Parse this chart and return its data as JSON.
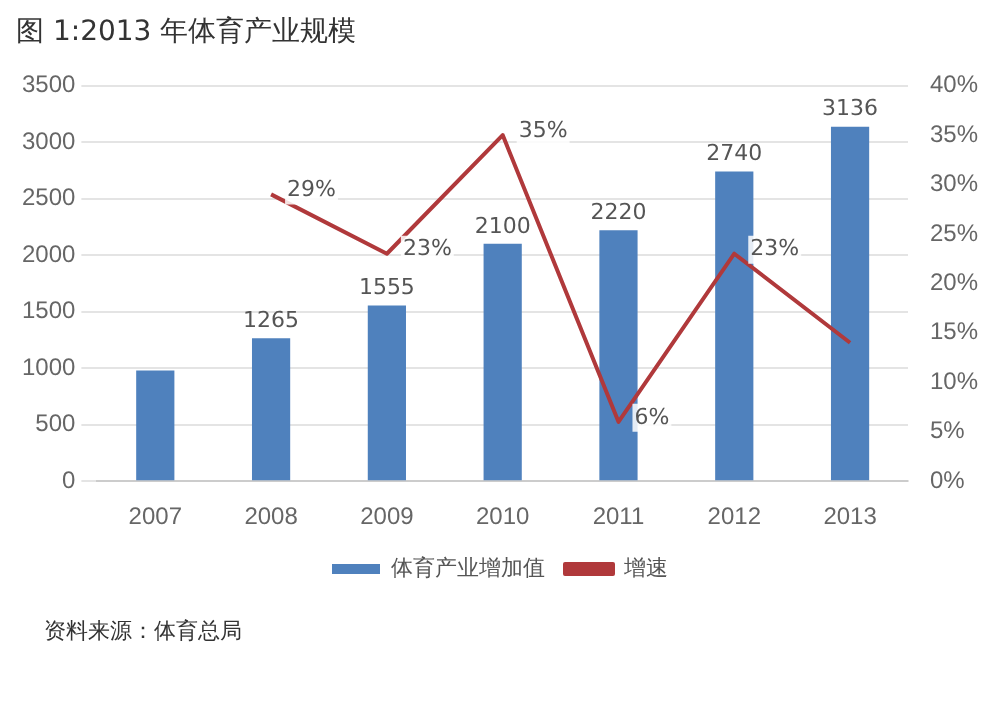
{
  "chart_data": {
    "type": "bar",
    "title": "图 1:2013 年体育产业规模",
    "categories": [
      "2007",
      "2008",
      "2009",
      "2010",
      "2011",
      "2012",
      "2013"
    ],
    "series": [
      {
        "name": "体育产业增加值",
        "color": "#4f81bd",
        "values": [
          980,
          1265,
          1555,
          2100,
          2220,
          2740,
          3136
        ],
        "value_labels": [
          null,
          "1265",
          "1555",
          "2100",
          "2220",
          "2740",
          "3136"
        ]
      },
      {
        "name": "增速",
        "type": "line",
        "axis": "y2",
        "color": "#b0393b",
        "marker": "none",
        "values": [
          null,
          29,
          23,
          35,
          6,
          23,
          14
        ],
        "value_labels": [
          null,
          "29%",
          "23%",
          "35%",
          "6%",
          "23%",
          null
        ]
      }
    ],
    "ylim": [
      0,
      3500
    ],
    "yticks": [
      0,
      500,
      1000,
      1500,
      2000,
      2500,
      3000,
      3500
    ],
    "y2lim": [
      0,
      40
    ],
    "y2ticks": [
      {
        "value": 0,
        "label": "0%"
      },
      {
        "value": 5,
        "label": "5%"
      },
      {
        "value": 10,
        "label": "10%"
      },
      {
        "value": 15,
        "label": "15%"
      },
      {
        "value": 20,
        "label": "20%"
      },
      {
        "value": 25,
        "label": "25%"
      },
      {
        "value": 30,
        "label": "30%"
      },
      {
        "value": 35,
        "label": "35%"
      },
      {
        "value": 40,
        "label": "40%"
      }
    ],
    "grid": "y",
    "legend": "bottom",
    "annotations": [
      "资料来源：体育总局"
    ]
  }
}
